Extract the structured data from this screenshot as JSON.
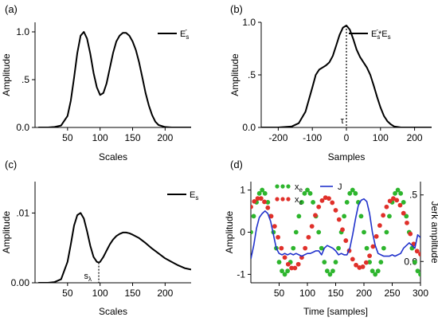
{
  "chart_data": [
    {
      "panel_label": "(a)",
      "type": "line",
      "xlabel": "Scales",
      "ylabel": "Amplitude",
      "xlim": [
        0,
        240
      ],
      "ylim": [
        0,
        1.1
      ],
      "xticks": [
        50,
        100,
        150,
        200
      ],
      "xtick_labels": [
        "50",
        "100",
        "150",
        "200"
      ],
      "yticks": [
        0,
        0.5,
        1.0
      ],
      "ytick_labels": [
        "0.0",
        ".5",
        "1.0"
      ],
      "grid": false,
      "legend_position": "top-right",
      "series": [
        {
          "name": "E_s^-",
          "legend_main": "E",
          "legend_sub": "s",
          "legend_sup": "-",
          "color": "#000000",
          "style": "solid",
          "x": [
            5,
            20,
            30,
            40,
            50,
            55,
            60,
            65,
            70,
            75,
            80,
            85,
            90,
            95,
            100,
            105,
            110,
            115,
            120,
            125,
            130,
            135,
            140,
            145,
            150,
            155,
            160,
            165,
            170,
            175,
            180,
            185,
            190,
            200,
            210,
            220,
            230,
            240
          ],
          "y": [
            0,
            0,
            0.005,
            0.02,
            0.12,
            0.28,
            0.52,
            0.78,
            0.96,
            1.0,
            0.93,
            0.77,
            0.57,
            0.42,
            0.34,
            0.36,
            0.46,
            0.62,
            0.78,
            0.9,
            0.96,
            0.99,
            0.99,
            0.96,
            0.9,
            0.81,
            0.68,
            0.52,
            0.36,
            0.23,
            0.13,
            0.06,
            0.025,
            0.005,
            0,
            0,
            0,
            0
          ]
        }
      ]
    },
    {
      "panel_label": "(b)",
      "type": "line",
      "xlabel": "Samples",
      "ylabel": "Amplitude",
      "xlim": [
        -250,
        250
      ],
      "ylim": [
        0,
        1.0
      ],
      "xticks": [
        -200,
        -100,
        0,
        100,
        200
      ],
      "xtick_labels": [
        "-200",
        "-100",
        "0",
        "100",
        "200"
      ],
      "yticks": [
        0,
        0.5,
        1.0
      ],
      "ytick_labels": [
        "0.0",
        ".5",
        "1.0"
      ],
      "grid": false,
      "legend_position": "top-right",
      "annotation": {
        "text": "τ",
        "x": 0
      },
      "series": [
        {
          "name": "E_s^- * E_s",
          "legend_main": "E",
          "legend_sub": "s",
          "legend_sup": "-",
          "legend_tail": "*E",
          "legend_tail_sub": "s",
          "color": "#000000",
          "style": "solid",
          "x": [
            -250,
            -200,
            -160,
            -140,
            -120,
            -100,
            -90,
            -80,
            -70,
            -60,
            -50,
            -40,
            -30,
            -20,
            -10,
            0,
            10,
            20,
            30,
            40,
            50,
            60,
            70,
            80,
            90,
            100,
            110,
            120,
            130,
            140,
            160,
            180,
            200,
            250
          ],
          "y": [
            0,
            0,
            0.01,
            0.04,
            0.15,
            0.38,
            0.5,
            0.55,
            0.57,
            0.59,
            0.62,
            0.68,
            0.78,
            0.88,
            0.95,
            0.97,
            0.93,
            0.84,
            0.74,
            0.67,
            0.62,
            0.57,
            0.5,
            0.4,
            0.29,
            0.19,
            0.11,
            0.06,
            0.03,
            0.01,
            0,
            0,
            0,
            0
          ]
        }
      ]
    },
    {
      "panel_label": "(c)",
      "type": "line",
      "xlabel": "Scales",
      "ylabel": "Amplitude",
      "xlim": [
        0,
        240
      ],
      "ylim": [
        0,
        0.0145
      ],
      "xticks": [
        50,
        100,
        150,
        200
      ],
      "xtick_labels": [
        "50",
        "100",
        "150",
        "200"
      ],
      "yticks": [
        0,
        0.01
      ],
      "ytick_labels": [
        "0.00",
        ".01"
      ],
      "grid": false,
      "legend_position": "top-right",
      "annotation": {
        "text": "s",
        "sub": "λ",
        "x": 98
      },
      "series": [
        {
          "name": "E_s",
          "legend_main": "E",
          "legend_sub": "s",
          "legend_sup": "",
          "color": "#000000",
          "style": "solid",
          "x": [
            5,
            20,
            30,
            40,
            50,
            55,
            60,
            65,
            70,
            75,
            80,
            85,
            90,
            95,
            98,
            100,
            105,
            110,
            115,
            120,
            125,
            130,
            135,
            140,
            145,
            150,
            160,
            170,
            180,
            190,
            200,
            210,
            220,
            230,
            240
          ],
          "y": [
            0,
            0,
            0.0001,
            0.0005,
            0.003,
            0.0055,
            0.0082,
            0.0097,
            0.01,
            0.0092,
            0.0074,
            0.0053,
            0.0037,
            0.003,
            0.0029,
            0.003,
            0.0037,
            0.0046,
            0.0055,
            0.0062,
            0.0067,
            0.007,
            0.0072,
            0.0072,
            0.0071,
            0.0069,
            0.0064,
            0.0057,
            0.0049,
            0.0042,
            0.0035,
            0.003,
            0.0025,
            0.0021,
            0.0019
          ]
        }
      ]
    },
    {
      "panel_label": "(d)",
      "type": "line",
      "xlabel": "Time [samples]",
      "ylabel": "Amplitude",
      "y2label": "Jerk amplitude",
      "xlim": [
        0,
        300
      ],
      "ylim": [
        -1.2,
        1.2
      ],
      "y2lim": [
        -0.16,
        0.6
      ],
      "xticks": [
        50,
        100,
        150,
        200,
        250,
        300
      ],
      "xtick_labels": [
        "50",
        "100",
        "150",
        "200",
        "250",
        "300"
      ],
      "yticks": [
        -1,
        0,
        1
      ],
      "ytick_labels": [
        "-1",
        "0",
        "1"
      ],
      "y2ticks": [
        0,
        0.5
      ],
      "y2tick_labels": [
        "0.0",
        ".5"
      ],
      "grid": false,
      "legend_position": "top",
      "series": [
        {
          "name": "x_e",
          "legend_main": "x",
          "legend_sub": "e",
          "color": "#2db52d",
          "style": "dots",
          "axis": "left",
          "x": [
            0,
            5,
            10,
            15,
            20,
            25,
            30,
            35,
            40,
            45,
            50,
            55,
            60,
            65,
            70,
            75,
            80,
            85,
            90,
            95,
            100,
            105,
            110,
            115,
            120,
            125,
            130,
            135,
            140,
            145,
            150,
            155,
            160,
            165,
            170,
            175,
            180,
            185,
            190,
            195,
            200,
            205,
            210,
            215,
            220,
            225,
            230,
            235,
            240,
            245,
            250,
            255,
            260,
            265,
            270,
            275,
            280,
            285,
            290,
            295,
            300
          ],
          "y": [
            0.0,
            0.38,
            0.71,
            0.92,
            1.0,
            0.92,
            0.71,
            0.38,
            0.0,
            -0.38,
            -0.71,
            -0.92,
            -1.0,
            -0.92,
            -0.71,
            -0.38,
            0.0,
            0.38,
            0.71,
            0.92,
            1.0,
            0.92,
            0.71,
            0.38,
            0.0,
            -0.38,
            -0.71,
            -0.92,
            -1.0,
            -0.92,
            -0.71,
            -0.38,
            0.0,
            0.38,
            0.71,
            0.92,
            1.0,
            0.92,
            0.71,
            0.38,
            0.0,
            -0.38,
            -0.71,
            -0.92,
            -1.0,
            -0.92,
            -0.71,
            -0.38,
            0.0,
            0.38,
            0.71,
            0.92,
            1.0,
            0.92,
            0.71,
            0.38,
            0.0,
            -0.38,
            -0.71,
            -0.92,
            -1.0
          ]
        },
        {
          "name": "x_c",
          "legend_main": "x",
          "legend_sub": "c",
          "color": "#e0302a",
          "style": "dots",
          "axis": "left",
          "x": [
            0,
            6,
            12,
            18,
            24,
            30,
            36,
            42,
            48,
            54,
            60,
            66,
            72,
            78,
            84,
            90,
            96,
            102,
            108,
            114,
            120,
            126,
            132,
            138,
            144,
            150,
            156,
            162,
            168,
            174,
            180,
            186,
            192,
            198,
            204,
            210,
            216,
            222,
            228,
            234,
            240,
            246,
            252,
            258,
            264,
            270,
            276,
            282,
            288,
            294,
            300
          ],
          "y": [
            0.6,
            0.73,
            0.8,
            0.8,
            0.72,
            0.58,
            0.38,
            0.14,
            -0.12,
            -0.38,
            -0.6,
            -0.76,
            -0.85,
            -0.85,
            -0.76,
            -0.6,
            -0.38,
            -0.12,
            0.14,
            0.4,
            0.6,
            0.75,
            0.82,
            0.8,
            0.7,
            0.52,
            0.3,
            0.06,
            -0.2,
            -0.44,
            -0.64,
            -0.78,
            -0.84,
            -0.82,
            -0.72,
            -0.56,
            -0.34,
            -0.1,
            0.16,
            0.4,
            0.6,
            0.74,
            0.8,
            0.76,
            0.64,
            0.45,
            0.22,
            -0.04,
            -0.28,
            -0.45,
            -0.52
          ]
        },
        {
          "name": "J",
          "legend_main": "J",
          "legend_sub": "",
          "color": "#2233cc",
          "style": "solid",
          "axis": "right",
          "x": [
            0,
            5,
            10,
            15,
            20,
            25,
            30,
            35,
            40,
            45,
            50,
            55,
            60,
            65,
            70,
            75,
            80,
            85,
            90,
            95,
            100,
            105,
            110,
            115,
            120,
            125,
            130,
            135,
            140,
            145,
            150,
            155,
            160,
            165,
            170,
            175,
            180,
            185,
            190,
            195,
            200,
            205,
            210,
            215,
            220,
            225,
            230,
            235,
            240,
            245,
            250,
            255,
            260,
            265,
            270,
            275,
            280,
            285,
            290,
            295,
            300
          ],
          "y": [
            0.02,
            0.12,
            0.25,
            0.33,
            0.36,
            0.38,
            0.36,
            0.3,
            0.2,
            0.1,
            0.06,
            0.05,
            0.06,
            0.05,
            0.06,
            0.05,
            0.06,
            0.05,
            0.04,
            0.05,
            0.06,
            0.06,
            0.07,
            0.08,
            0.08,
            0.05,
            0.1,
            0.12,
            0.11,
            0.1,
            0.08,
            0.05,
            0.06,
            0.05,
            0.05,
            0.1,
            0.2,
            0.32,
            0.42,
            0.46,
            0.47,
            0.45,
            0.36,
            0.22,
            0.12,
            0.06,
            0.05,
            0.04,
            0.04,
            0.04,
            0.05,
            0.04,
            0.05,
            0.06,
            0.1,
            0.12,
            0.14,
            0.12,
            0.1,
            0.2,
            0.18
          ]
        }
      ]
    }
  ]
}
